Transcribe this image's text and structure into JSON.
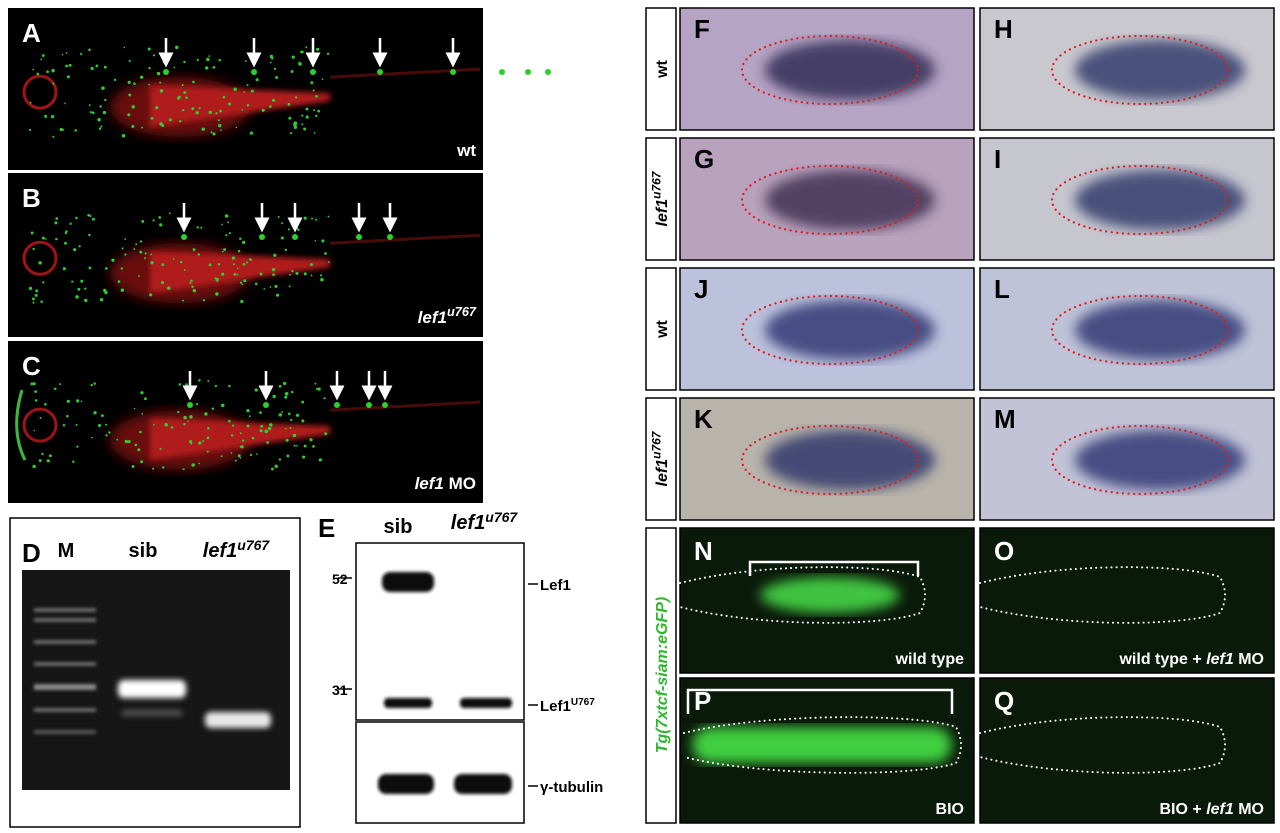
{
  "embryo_panels": [
    {
      "letter": "A",
      "label": "wt"
    },
    {
      "letter": "B",
      "label": {
        "gene": "lef1",
        "allele": "u767"
      }
    },
    {
      "letter": "C",
      "label": {
        "gene": "lef1",
        "reagent": "MO"
      }
    }
  ],
  "gel": {
    "letter": "D",
    "lanes": [
      "M",
      "sib",
      {
        "gene": "lef1",
        "allele": "u767"
      }
    ]
  },
  "western": {
    "letter": "E",
    "lanes": [
      "sib",
      {
        "gene": "lef1",
        "allele": "u767"
      }
    ],
    "markers": [
      52,
      31
    ],
    "bands": [
      {
        "name": "Lef1"
      },
      {
        "name": "Lef1",
        "superscript": "U767"
      },
      {
        "name": "γ-tubulin"
      }
    ]
  },
  "ish": {
    "row_labels": [
      "wt",
      {
        "gene": "lef1",
        "allele": "u767"
      },
      "wt",
      {
        "gene": "lef1",
        "allele": "u767"
      }
    ],
    "letters": [
      "F",
      "H",
      "G",
      "I",
      "J",
      "L",
      "K",
      "M"
    ]
  },
  "reporter": {
    "transgene": "Tg(7xtcf-siam:eGFP)",
    "panels": [
      {
        "letter": "N",
        "label": "wild type"
      },
      {
        "letter": "O",
        "label": {
          "condition": "wild type +",
          "gene": "lef1",
          "reagent": "MO"
        }
      },
      {
        "letter": "P",
        "label": "BIO"
      },
      {
        "letter": "Q",
        "label": {
          "condition": "BIO +",
          "gene": "lef1",
          "reagent": "MO"
        }
      }
    ]
  }
}
